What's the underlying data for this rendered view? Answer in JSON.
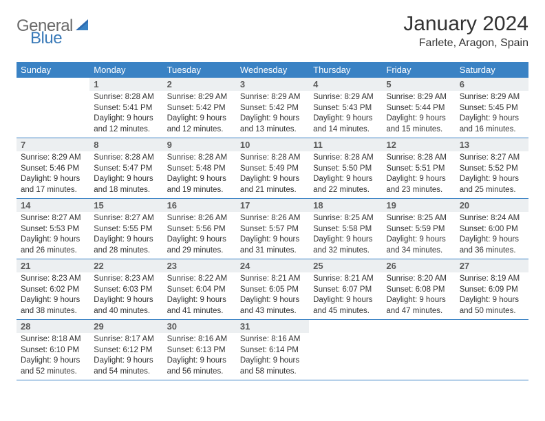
{
  "logo": {
    "general": "General",
    "blue": "Blue"
  },
  "title": "January 2024",
  "location": "Farlete, Aragon, Spain",
  "colors": {
    "header_bg": "#3a82c4",
    "header_fg": "#ffffff",
    "daynum_bg": "#eceff1",
    "rule": "#3a82c4",
    "logo_gray": "#6a6a6a",
    "logo_blue": "#3a7ab8"
  },
  "weekdays": [
    "Sunday",
    "Monday",
    "Tuesday",
    "Wednesday",
    "Thursday",
    "Friday",
    "Saturday"
  ],
  "start_offset": 1,
  "days": [
    {
      "n": 1,
      "sr": "8:28 AM",
      "ss": "5:41 PM",
      "dl": "9 hours and 12 minutes."
    },
    {
      "n": 2,
      "sr": "8:29 AM",
      "ss": "5:42 PM",
      "dl": "9 hours and 12 minutes."
    },
    {
      "n": 3,
      "sr": "8:29 AM",
      "ss": "5:42 PM",
      "dl": "9 hours and 13 minutes."
    },
    {
      "n": 4,
      "sr": "8:29 AM",
      "ss": "5:43 PM",
      "dl": "9 hours and 14 minutes."
    },
    {
      "n": 5,
      "sr": "8:29 AM",
      "ss": "5:44 PM",
      "dl": "9 hours and 15 minutes."
    },
    {
      "n": 6,
      "sr": "8:29 AM",
      "ss": "5:45 PM",
      "dl": "9 hours and 16 minutes."
    },
    {
      "n": 7,
      "sr": "8:29 AM",
      "ss": "5:46 PM",
      "dl": "9 hours and 17 minutes."
    },
    {
      "n": 8,
      "sr": "8:28 AM",
      "ss": "5:47 PM",
      "dl": "9 hours and 18 minutes."
    },
    {
      "n": 9,
      "sr": "8:28 AM",
      "ss": "5:48 PM",
      "dl": "9 hours and 19 minutes."
    },
    {
      "n": 10,
      "sr": "8:28 AM",
      "ss": "5:49 PM",
      "dl": "9 hours and 21 minutes."
    },
    {
      "n": 11,
      "sr": "8:28 AM",
      "ss": "5:50 PM",
      "dl": "9 hours and 22 minutes."
    },
    {
      "n": 12,
      "sr": "8:28 AM",
      "ss": "5:51 PM",
      "dl": "9 hours and 23 minutes."
    },
    {
      "n": 13,
      "sr": "8:27 AM",
      "ss": "5:52 PM",
      "dl": "9 hours and 25 minutes."
    },
    {
      "n": 14,
      "sr": "8:27 AM",
      "ss": "5:53 PM",
      "dl": "9 hours and 26 minutes."
    },
    {
      "n": 15,
      "sr": "8:27 AM",
      "ss": "5:55 PM",
      "dl": "9 hours and 28 minutes."
    },
    {
      "n": 16,
      "sr": "8:26 AM",
      "ss": "5:56 PM",
      "dl": "9 hours and 29 minutes."
    },
    {
      "n": 17,
      "sr": "8:26 AM",
      "ss": "5:57 PM",
      "dl": "9 hours and 31 minutes."
    },
    {
      "n": 18,
      "sr": "8:25 AM",
      "ss": "5:58 PM",
      "dl": "9 hours and 32 minutes."
    },
    {
      "n": 19,
      "sr": "8:25 AM",
      "ss": "5:59 PM",
      "dl": "9 hours and 34 minutes."
    },
    {
      "n": 20,
      "sr": "8:24 AM",
      "ss": "6:00 PM",
      "dl": "9 hours and 36 minutes."
    },
    {
      "n": 21,
      "sr": "8:23 AM",
      "ss": "6:02 PM",
      "dl": "9 hours and 38 minutes."
    },
    {
      "n": 22,
      "sr": "8:23 AM",
      "ss": "6:03 PM",
      "dl": "9 hours and 40 minutes."
    },
    {
      "n": 23,
      "sr": "8:22 AM",
      "ss": "6:04 PM",
      "dl": "9 hours and 41 minutes."
    },
    {
      "n": 24,
      "sr": "8:21 AM",
      "ss": "6:05 PM",
      "dl": "9 hours and 43 minutes."
    },
    {
      "n": 25,
      "sr": "8:21 AM",
      "ss": "6:07 PM",
      "dl": "9 hours and 45 minutes."
    },
    {
      "n": 26,
      "sr": "8:20 AM",
      "ss": "6:08 PM",
      "dl": "9 hours and 47 minutes."
    },
    {
      "n": 27,
      "sr": "8:19 AM",
      "ss": "6:09 PM",
      "dl": "9 hours and 50 minutes."
    },
    {
      "n": 28,
      "sr": "8:18 AM",
      "ss": "6:10 PM",
      "dl": "9 hours and 52 minutes."
    },
    {
      "n": 29,
      "sr": "8:17 AM",
      "ss": "6:12 PM",
      "dl": "9 hours and 54 minutes."
    },
    {
      "n": 30,
      "sr": "8:16 AM",
      "ss": "6:13 PM",
      "dl": "9 hours and 56 minutes."
    },
    {
      "n": 31,
      "sr": "8:16 AM",
      "ss": "6:14 PM",
      "dl": "9 hours and 58 minutes."
    }
  ],
  "labels": {
    "sunrise": "Sunrise:",
    "sunset": "Sunset:",
    "daylight": "Daylight:"
  }
}
